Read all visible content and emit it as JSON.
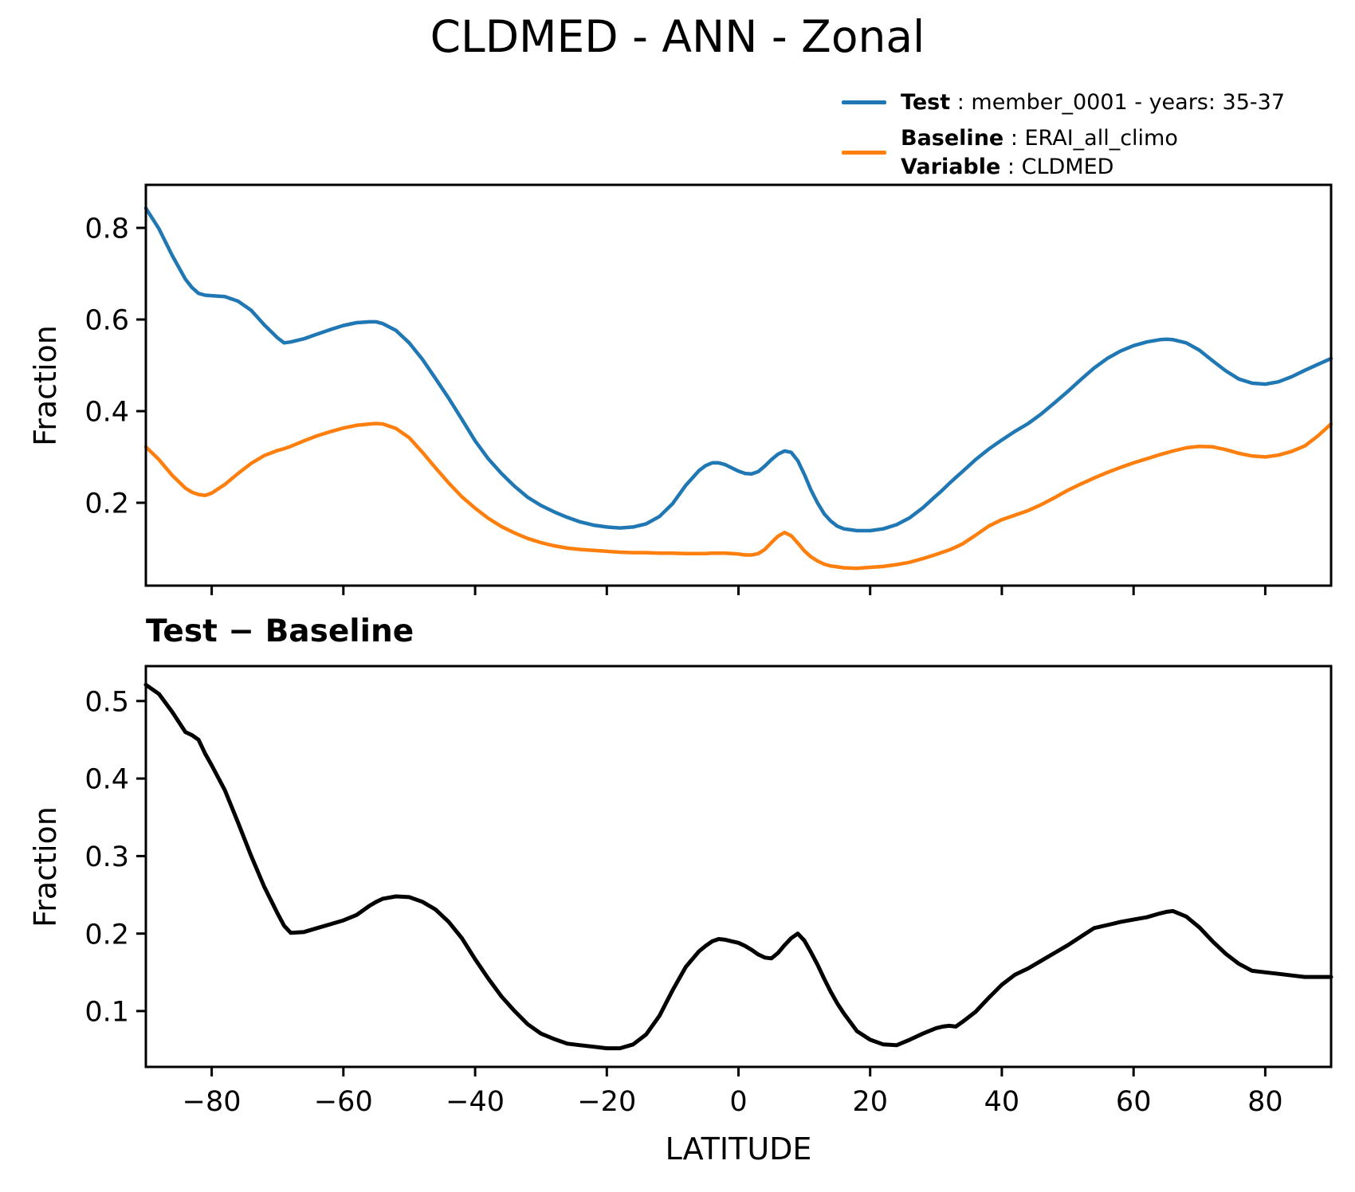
{
  "figure": {
    "title": "CLDMED - ANN - Zonal",
    "xlabel": "LATITUDE",
    "background_color": "#ffffff",
    "text_color": "#000000"
  },
  "legend": {
    "position": "upper right, outside axes",
    "entries": [
      {
        "series": "test",
        "color": "#1f77b4",
        "label_bold": "Test",
        "label_rest": " : member_0001 - years: 35-37"
      },
      {
        "series": "baseline",
        "color": "#ff7f0e",
        "label_bold": "Baseline",
        "label_rest": " : ERAI_all_climo",
        "label2_bold": "Variable",
        "label2_rest": " : CLDMED"
      }
    ]
  },
  "chart_data": [
    {
      "type": "line",
      "title": "",
      "xlabel": "",
      "ylabel": "Fraction",
      "grid": false,
      "xlim": [
        -90,
        90
      ],
      "ylim": [
        0.019,
        0.894
      ],
      "xticks": [
        {
          "v": -80,
          "label": "−80"
        },
        {
          "v": -60,
          "label": "−60"
        },
        {
          "v": -40,
          "label": "−40"
        },
        {
          "v": -20,
          "label": "−20"
        },
        {
          "v": 0,
          "label": "0"
        },
        {
          "v": 20,
          "label": "20"
        },
        {
          "v": 40,
          "label": "40"
        },
        {
          "v": 60,
          "label": "60"
        },
        {
          "v": 80,
          "label": "80"
        }
      ],
      "show_xtick_labels": false,
      "yticks": [
        {
          "v": 0.2,
          "label": "0.2"
        },
        {
          "v": 0.4,
          "label": "0.4"
        },
        {
          "v": 0.6,
          "label": "0.6"
        },
        {
          "v": 0.8,
          "label": "0.8"
        }
      ],
      "x": [
        -90,
        -88,
        -86,
        -84,
        -83,
        -82,
        -81,
        -80,
        -78,
        -76,
        -74,
        -72,
        -70,
        -69,
        -68,
        -66,
        -64,
        -62,
        -60,
        -58,
        -56,
        -55,
        -54,
        -52,
        -50,
        -48,
        -46,
        -44,
        -42,
        -40,
        -38,
        -36,
        -34,
        -32,
        -30,
        -28,
        -26,
        -24,
        -22,
        -20,
        -18,
        -16,
        -14,
        -12,
        -10,
        -8,
        -6,
        -5,
        -4,
        -3,
        -2,
        -1,
        0,
        1,
        2,
        3,
        4,
        5,
        6,
        7,
        8,
        9,
        10,
        11,
        12,
        13,
        14,
        15,
        16,
        18,
        20,
        22,
        24,
        26,
        28,
        30,
        31,
        32,
        33,
        34,
        36,
        38,
        40,
        42,
        44,
        46,
        48,
        50,
        52,
        54,
        56,
        58,
        60,
        62,
        64,
        65,
        66,
        68,
        70,
        72,
        74,
        76,
        78,
        80,
        82,
        84,
        86,
        88,
        90
      ],
      "series": [
        {
          "name": "Test : member_0001 - years: 35-37",
          "color": "#1f77b4",
          "values": [
            0.843,
            0.798,
            0.74,
            0.688,
            0.67,
            0.657,
            0.653,
            0.652,
            0.65,
            0.64,
            0.62,
            0.588,
            0.56,
            0.549,
            0.551,
            0.558,
            0.568,
            0.578,
            0.587,
            0.593,
            0.595,
            0.595,
            0.591,
            0.576,
            0.549,
            0.513,
            0.471,
            0.428,
            0.382,
            0.335,
            0.296,
            0.264,
            0.236,
            0.212,
            0.194,
            0.18,
            0.168,
            0.158,
            0.151,
            0.147,
            0.145,
            0.147,
            0.154,
            0.17,
            0.198,
            0.238,
            0.27,
            0.281,
            0.287,
            0.287,
            0.283,
            0.276,
            0.269,
            0.264,
            0.263,
            0.268,
            0.28,
            0.294,
            0.306,
            0.313,
            0.31,
            0.292,
            0.262,
            0.228,
            0.2,
            0.176,
            0.16,
            0.149,
            0.143,
            0.139,
            0.139,
            0.143,
            0.152,
            0.167,
            0.189,
            0.215,
            0.228,
            0.242,
            0.255,
            0.268,
            0.294,
            0.317,
            0.337,
            0.356,
            0.373,
            0.394,
            0.418,
            0.443,
            0.469,
            0.494,
            0.515,
            0.531,
            0.543,
            0.551,
            0.556,
            0.557,
            0.556,
            0.549,
            0.533,
            0.51,
            0.488,
            0.47,
            0.461,
            0.459,
            0.464,
            0.475,
            0.489,
            0.502,
            0.515
          ]
        },
        {
          "name": "Baseline : ERAI_all_climo",
          "color": "#ff7f0e",
          "values": [
            0.322,
            0.294,
            0.26,
            0.232,
            0.223,
            0.218,
            0.216,
            0.221,
            0.24,
            0.264,
            0.286,
            0.303,
            0.314,
            0.318,
            0.323,
            0.335,
            0.346,
            0.355,
            0.363,
            0.369,
            0.372,
            0.373,
            0.372,
            0.362,
            0.342,
            0.31,
            0.276,
            0.243,
            0.213,
            0.188,
            0.166,
            0.148,
            0.134,
            0.122,
            0.113,
            0.106,
            0.101,
            0.098,
            0.096,
            0.094,
            0.092,
            0.091,
            0.091,
            0.09,
            0.09,
            0.089,
            0.089,
            0.089,
            0.09,
            0.09,
            0.09,
            0.089,
            0.088,
            0.086,
            0.086,
            0.089,
            0.098,
            0.113,
            0.127,
            0.135,
            0.128,
            0.112,
            0.095,
            0.082,
            0.073,
            0.066,
            0.062,
            0.06,
            0.058,
            0.057,
            0.059,
            0.061,
            0.065,
            0.07,
            0.078,
            0.087,
            0.092,
            0.097,
            0.103,
            0.11,
            0.129,
            0.149,
            0.163,
            0.173,
            0.183,
            0.196,
            0.211,
            0.227,
            0.241,
            0.254,
            0.266,
            0.277,
            0.287,
            0.296,
            0.305,
            0.309,
            0.313,
            0.32,
            0.323,
            0.322,
            0.316,
            0.308,
            0.302,
            0.3,
            0.304,
            0.312,
            0.324,
            0.346,
            0.372
          ]
        }
      ]
    },
    {
      "type": "line",
      "title": "Test − Baseline",
      "xlabel": "LATITUDE",
      "ylabel": "Fraction",
      "grid": false,
      "xlim": [
        -90,
        90
      ],
      "ylim": [
        0.028,
        0.545
      ],
      "xticks": [
        {
          "v": -80,
          "label": "−80"
        },
        {
          "v": -60,
          "label": "−60"
        },
        {
          "v": -40,
          "label": "−40"
        },
        {
          "v": -20,
          "label": "−20"
        },
        {
          "v": 0,
          "label": "0"
        },
        {
          "v": 20,
          "label": "20"
        },
        {
          "v": 40,
          "label": "40"
        },
        {
          "v": 60,
          "label": "60"
        },
        {
          "v": 80,
          "label": "80"
        }
      ],
      "show_xtick_labels": true,
      "yticks": [
        {
          "v": 0.1,
          "label": "0.1"
        },
        {
          "v": 0.2,
          "label": "0.2"
        },
        {
          "v": 0.3,
          "label": "0.3"
        },
        {
          "v": 0.4,
          "label": "0.4"
        },
        {
          "v": 0.5,
          "label": "0.5"
        }
      ],
      "x": [
        -90,
        -88,
        -86,
        -84,
        -83,
        -82,
        -81,
        -80,
        -78,
        -76,
        -74,
        -72,
        -70,
        -69,
        -68,
        -66,
        -64,
        -62,
        -60,
        -58,
        -56,
        -55,
        -54,
        -52,
        -50,
        -48,
        -46,
        -44,
        -42,
        -40,
        -38,
        -36,
        -34,
        -32,
        -30,
        -28,
        -26,
        -24,
        -22,
        -20,
        -18,
        -16,
        -14,
        -12,
        -10,
        -8,
        -6,
        -5,
        -4,
        -3,
        -2,
        -1,
        0,
        1,
        2,
        3,
        4,
        5,
        6,
        7,
        8,
        9,
        10,
        11,
        12,
        13,
        14,
        15,
        16,
        18,
        20,
        22,
        24,
        26,
        28,
        30,
        31,
        32,
        33,
        34,
        36,
        38,
        40,
        42,
        44,
        46,
        48,
        50,
        52,
        54,
        56,
        58,
        60,
        62,
        64,
        65,
        66,
        68,
        70,
        72,
        74,
        76,
        78,
        80,
        82,
        84,
        86,
        88,
        90
      ],
      "series": [
        {
          "name": "Test − Baseline",
          "color": "#000000",
          "values": [
            0.521,
            0.509,
            0.486,
            0.46,
            0.456,
            0.45,
            0.432,
            0.417,
            0.385,
            0.343,
            0.3,
            0.26,
            0.226,
            0.21,
            0.201,
            0.202,
            0.207,
            0.212,
            0.217,
            0.224,
            0.236,
            0.241,
            0.245,
            0.248,
            0.247,
            0.241,
            0.231,
            0.215,
            0.194,
            0.167,
            0.142,
            0.119,
            0.1,
            0.083,
            0.071,
            0.064,
            0.058,
            0.056,
            0.054,
            0.052,
            0.052,
            0.057,
            0.07,
            0.094,
            0.127,
            0.157,
            0.177,
            0.184,
            0.19,
            0.193,
            0.192,
            0.19,
            0.188,
            0.184,
            0.179,
            0.173,
            0.169,
            0.168,
            0.175,
            0.185,
            0.194,
            0.2,
            0.191,
            0.176,
            0.16,
            0.142,
            0.125,
            0.11,
            0.097,
            0.074,
            0.063,
            0.057,
            0.056,
            0.063,
            0.071,
            0.078,
            0.08,
            0.081,
            0.08,
            0.086,
            0.099,
            0.117,
            0.134,
            0.147,
            0.155,
            0.165,
            0.175,
            0.185,
            0.196,
            0.207,
            0.211,
            0.215,
            0.218,
            0.221,
            0.226,
            0.228,
            0.229,
            0.222,
            0.208,
            0.19,
            0.174,
            0.161,
            0.152,
            0.15,
            0.148,
            0.146,
            0.144,
            0.144,
            0.144
          ]
        }
      ]
    }
  ]
}
